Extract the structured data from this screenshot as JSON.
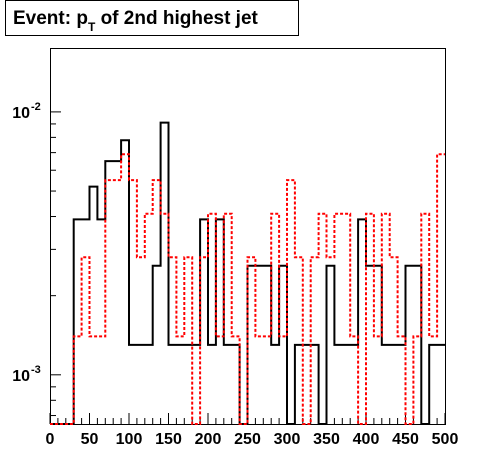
{
  "chart_data": {
    "type": "histogram",
    "title": {
      "prefix": "Event: p",
      "subscript": "T",
      "suffix": " of 2nd highest jet"
    },
    "x_axis": {
      "range": [
        0,
        500
      ],
      "scale": "linear",
      "ticks": [
        0,
        50,
        100,
        150,
        200,
        250,
        300,
        350,
        400,
        450,
        500
      ],
      "tick_labels": [
        "0",
        "50",
        "100",
        "150",
        "200",
        "250",
        "300",
        "350",
        "400",
        "450",
        "500"
      ]
    },
    "y_axis": {
      "scale": "log",
      "range": [
        0.00065,
        0.0175
      ],
      "labeled_ticks": [
        {
          "value": 0.001,
          "base": "10",
          "exponent": "-3"
        },
        {
          "value": 0.01,
          "base": "10",
          "exponent": "-2"
        }
      ]
    },
    "bin_edges": [
      0,
      10,
      20,
      30,
      40,
      50,
      60,
      70,
      80,
      90,
      100,
      110,
      120,
      130,
      140,
      150,
      160,
      170,
      180,
      190,
      200,
      210,
      220,
      230,
      240,
      250,
      260,
      270,
      280,
      290,
      300,
      310,
      320,
      330,
      340,
      350,
      360,
      370,
      380,
      390,
      400,
      410,
      420,
      430,
      440,
      450,
      460,
      470,
      480,
      490,
      500
    ],
    "series": [
      {
        "style": "solid",
        "color": "#000000",
        "values": [
          0.00065,
          0.00065,
          0.00065,
          0.0039,
          0.0039,
          0.0052,
          0.0039,
          0.0065,
          0.0065,
          0.0078,
          0.0013,
          0.0013,
          0.0013,
          0.0026,
          0.0091,
          0.0013,
          0.0013,
          0.0013,
          0.0013,
          0.0039,
          0.0013,
          0.0039,
          0.0013,
          0.0013,
          0.00065,
          0.0026,
          0.0026,
          0.0026,
          0.0013,
          0.0026,
          0.00065,
          0.0013,
          0.0013,
          0.0013,
          0.00065,
          0.0026,
          0.0013,
          0.0013,
          0.0013,
          0.0039,
          0.0026,
          0.0026,
          0.0013,
          0.0013,
          0.0013,
          0.0026,
          0.0026,
          0.00065,
          0.0013,
          0.0013
        ]
      },
      {
        "style": "dashed",
        "color": "#ff0000",
        "values": [
          0.00065,
          0.00065,
          0.00065,
          0.0014,
          0.0028,
          0.0014,
          0.0014,
          0.0055,
          0.0055,
          0.0069,
          0.0055,
          0.0028,
          0.0041,
          0.0055,
          0.0041,
          0.0028,
          0.0014,
          0.0028,
          0.00065,
          0.0028,
          0.0041,
          0.0014,
          0.0041,
          0.0014,
          0.00065,
          0.0028,
          0.0014,
          0.0014,
          0.0041,
          0.0014,
          0.0055,
          0.0028,
          0.00065,
          0.0028,
          0.0041,
          0.0028,
          0.0041,
          0.0041,
          0.0014,
          0.00065,
          0.0041,
          0.0014,
          0.0041,
          0.0028,
          0.0014,
          0.00065,
          0.0014,
          0.0041,
          0.0014,
          0.0069
        ]
      }
    ]
  }
}
